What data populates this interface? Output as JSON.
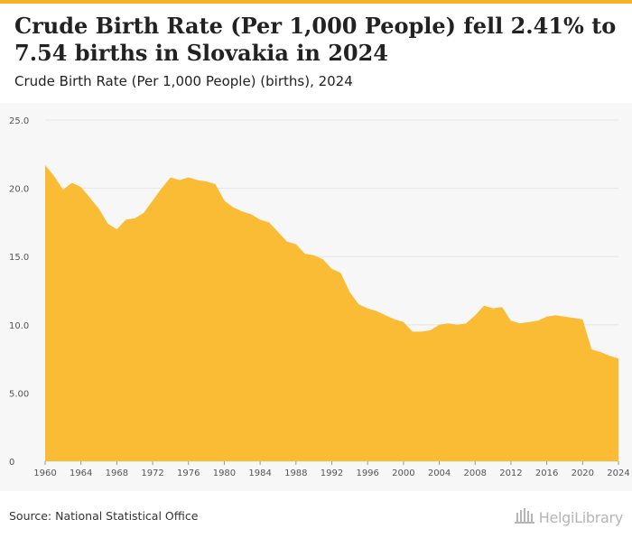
{
  "header": {
    "title": "Crude Birth Rate (Per 1,000 People) fell 2.41% to 7.54 births in Slovakia in 2024",
    "subtitle": "Crude Birth Rate (Per 1,000 People) (births), 2024"
  },
  "footer": {
    "source": "Source: National Statistical Office",
    "logo_text": "HelgiLibrary",
    "logo_icon": "library-building-icon"
  },
  "colors": {
    "accent": "#f5b324",
    "area_fill": "#fbbc35",
    "grid": "#e6e6e6",
    "background": "#f7f7f7"
  },
  "chart_data": {
    "type": "area",
    "title": "",
    "xlabel": "",
    "ylabel": "",
    "grid": true,
    "legend": "none",
    "ylim": [
      0,
      25
    ],
    "xlim": [
      1960,
      2024
    ],
    "y_ticks": [
      "0",
      "5.00",
      "10.0",
      "15.0",
      "20.0",
      "25.0"
    ],
    "y_tick_values": [
      0,
      5,
      10,
      15,
      20,
      25
    ],
    "x_ticks": [
      "1960",
      "1964",
      "1968",
      "1972",
      "1976",
      "1980",
      "1984",
      "1988",
      "1992",
      "1996",
      "2000",
      "2004",
      "2008",
      "2012",
      "2016",
      "2020",
      "2024"
    ],
    "x_tick_values": [
      1960,
      1964,
      1968,
      1972,
      1976,
      1980,
      1984,
      1988,
      1992,
      1996,
      2000,
      2004,
      2008,
      2012,
      2016,
      2020,
      2024
    ],
    "series": [
      {
        "x": [
          1960,
          1961,
          1962,
          1963,
          1964,
          1965,
          1966,
          1967,
          1968,
          1969,
          1970,
          1971,
          1972,
          1973,
          1974,
          1975,
          1976,
          1977,
          1978,
          1979,
          1980,
          1981,
          1982,
          1983,
          1984,
          1985,
          1986,
          1987,
          1988,
          1989,
          1990,
          1991,
          1992,
          1993,
          1994,
          1995,
          1996,
          1997,
          1998,
          1999,
          2000,
          2001,
          2002,
          2003,
          2004,
          2005,
          2006,
          2007,
          2008,
          2009,
          2010,
          2011,
          2012,
          2013,
          2014,
          2015,
          2016,
          2017,
          2018,
          2019,
          2020,
          2021,
          2022,
          2023,
          2024
        ],
        "values": [
          21.7,
          20.9,
          19.9,
          20.4,
          20.1,
          19.3,
          18.5,
          17.4,
          17.0,
          17.7,
          17.8,
          18.2,
          19.1,
          20.0,
          20.8,
          20.6,
          20.8,
          20.6,
          20.5,
          20.3,
          19.1,
          18.6,
          18.3,
          18.1,
          17.7,
          17.5,
          16.8,
          16.1,
          15.9,
          15.2,
          15.1,
          14.8,
          14.1,
          13.8,
          12.4,
          11.5,
          11.2,
          11.0,
          10.7,
          10.4,
          10.2,
          9.5,
          9.5,
          9.6,
          10.0,
          10.1,
          10.0,
          10.1,
          10.7,
          11.4,
          11.2,
          11.3,
          10.3,
          10.1,
          10.2,
          10.3,
          10.6,
          10.7,
          10.6,
          10.5,
          10.4,
          8.2,
          8.0,
          7.73,
          7.54
        ]
      }
    ]
  }
}
